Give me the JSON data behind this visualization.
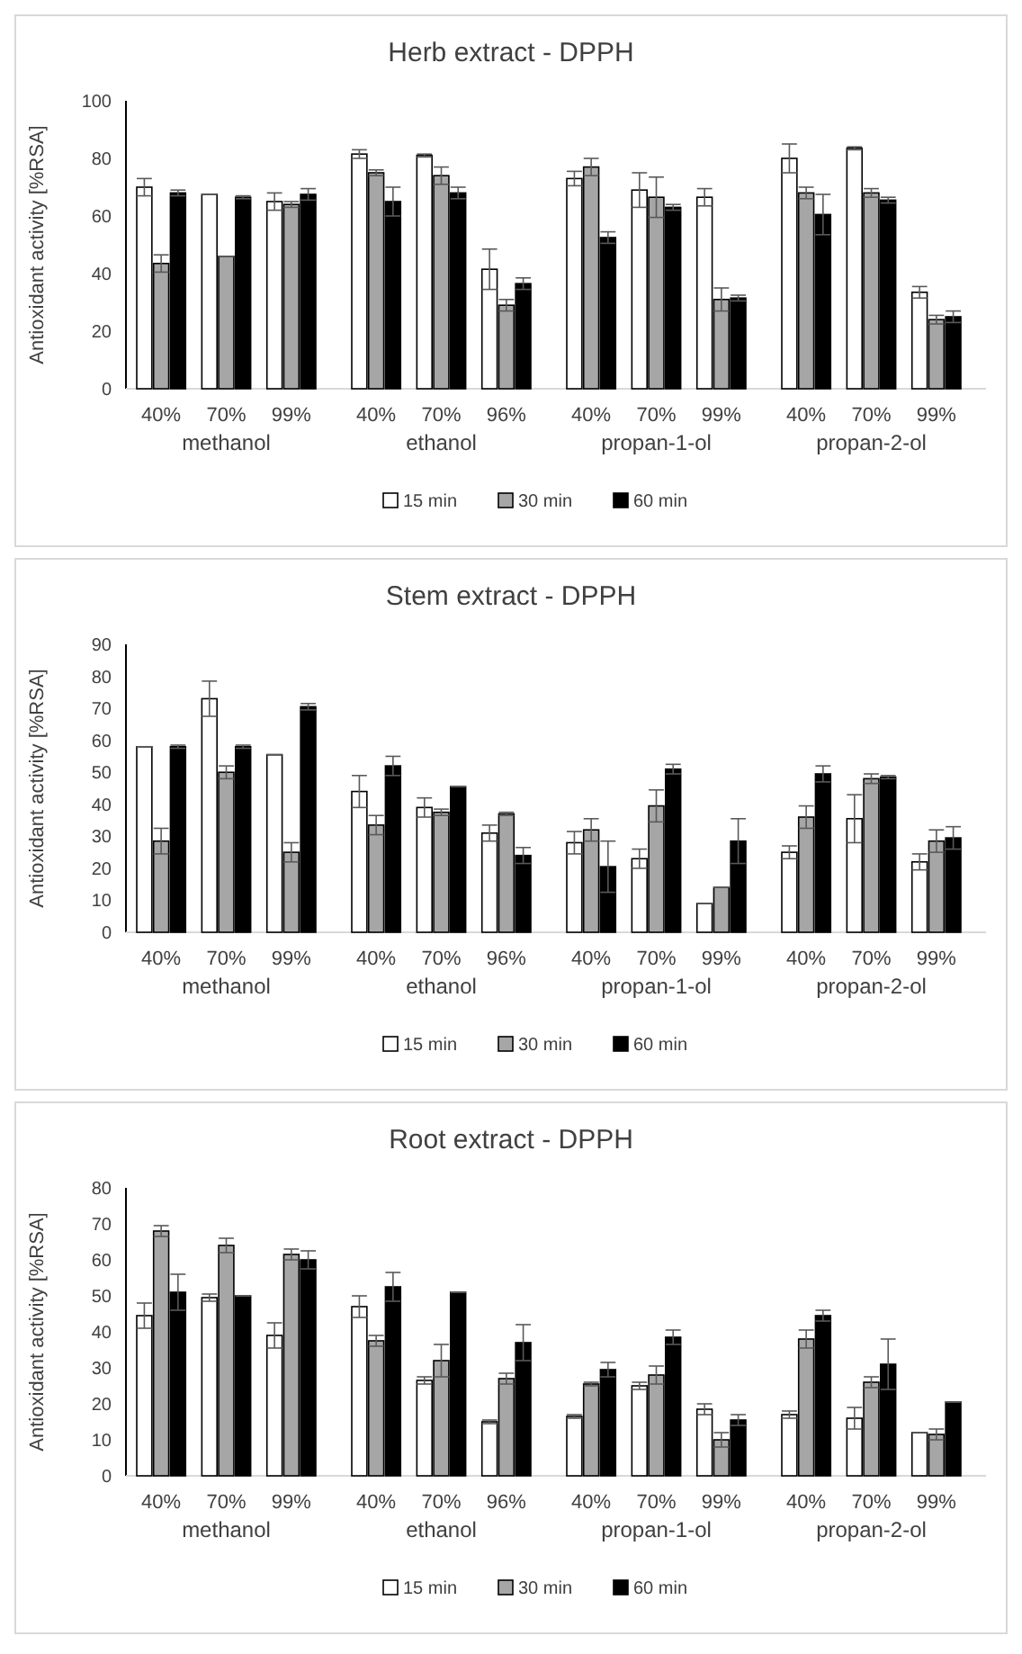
{
  "chart_data": [
    {
      "type": "bar",
      "title": "Herb extract - DPPH",
      "ylabel": "Antioxidant  activity [%RSA]",
      "categories": [
        "40%",
        "70%",
        "99%",
        "40%",
        "70%",
        "96%",
        "40%",
        "70%",
        "99%",
        "40%",
        "70%",
        "99%"
      ],
      "annotations": [
        "methanol",
        "ethanol",
        "propan-1-ol",
        "propan-2-ol"
      ],
      "ylim": [
        0,
        100
      ],
      "yticks": [
        0,
        20,
        40,
        60,
        80,
        100
      ],
      "legend": "bottom",
      "series": [
        {
          "name": "15 min",
          "color": "#ffffff",
          "values": [
            70,
            67.5,
            65,
            81.5,
            81,
            41.5,
            73,
            69,
            66.5,
            80,
            83.5,
            33.5
          ],
          "errors": [
            3,
            0,
            3,
            1.5,
            0.5,
            7,
            2.5,
            6,
            3,
            5,
            0.5,
            2
          ]
        },
        {
          "name": "30 min",
          "color": "#a6a6a6",
          "values": [
            43.5,
            46,
            64,
            75,
            74,
            29,
            77,
            66.5,
            31,
            68,
            68,
            24
          ],
          "errors": [
            3,
            0,
            1,
            1,
            3,
            2,
            3,
            7,
            4,
            2,
            1.5,
            1.5
          ]
        },
        {
          "name": "60 min",
          "color": "#000000",
          "values": [
            68,
            66.5,
            67.5,
            65,
            68,
            36.5,
            52.5,
            63,
            31.5,
            60.5,
            65.5,
            25
          ],
          "errors": [
            1,
            0.5,
            2,
            5,
            2,
            2,
            2,
            1,
            1,
            7,
            1,
            2
          ]
        }
      ]
    },
    {
      "type": "bar",
      "title": "Stem extract - DPPH",
      "ylabel": "Antioxidant  activity [%RSA]",
      "categories": [
        "40%",
        "70%",
        "99%",
        "40%",
        "70%",
        "96%",
        "40%",
        "70%",
        "99%",
        "40%",
        "70%",
        "99%"
      ],
      "annotations": [
        "methanol",
        "ethanol",
        "propan-1-ol",
        "propan-2-ol"
      ],
      "ylim": [
        0,
        90
      ],
      "yticks": [
        0,
        10,
        20,
        30,
        40,
        50,
        60,
        70,
        80,
        90
      ],
      "legend": "bottom",
      "series": [
        {
          "name": "15 min",
          "color": "#ffffff",
          "values": [
            58,
            73,
            55.5,
            44,
            39,
            31,
            28,
            23,
            9,
            25,
            35.5,
            22
          ],
          "errors": [
            0,
            5.5,
            0,
            5,
            3,
            2.5,
            3.5,
            3,
            0,
            2,
            7.5,
            2.5
          ]
        },
        {
          "name": "30 min",
          "color": "#a6a6a6",
          "values": [
            28.5,
            50,
            25,
            33.5,
            37.5,
            37,
            32,
            39.5,
            14,
            36,
            48,
            28.5
          ],
          "errors": [
            4,
            2,
            3,
            3,
            1,
            0.5,
            3.5,
            5,
            0,
            3.5,
            1.5,
            3.5
          ]
        },
        {
          "name": "60 min",
          "color": "#000000",
          "values": [
            58,
            58,
            70.5,
            52,
            45.5,
            24,
            20.5,
            51,
            28.5,
            49.5,
            48.5,
            29.5
          ],
          "errors": [
            0.5,
            0.5,
            1,
            3,
            0,
            2.5,
            8,
            1.5,
            7,
            2.5,
            0.5,
            3.5
          ]
        }
      ]
    },
    {
      "type": "bar",
      "title": "Root extract - DPPH",
      "ylabel": "Antioxidant activity [%RSA]",
      "categories": [
        "40%",
        "70%",
        "99%",
        "40%",
        "70%",
        "96%",
        "40%",
        "70%",
        "99%",
        "40%",
        "70%",
        "99%"
      ],
      "annotations": [
        "methanol",
        "ethanol",
        "propan-1-ol",
        "propan-2-ol"
      ],
      "ylim": [
        0,
        80
      ],
      "yticks": [
        0,
        10,
        20,
        30,
        40,
        50,
        60,
        70,
        80
      ],
      "legend": "bottom",
      "series": [
        {
          "name": "15 min",
          "color": "#ffffff",
          "values": [
            44.5,
            49.5,
            39,
            47,
            26.5,
            15,
            16.5,
            25,
            18.5,
            17,
            16,
            12
          ],
          "errors": [
            3.5,
            1,
            3.5,
            3,
            1,
            0.5,
            0.5,
            1,
            1.5,
            1,
            3,
            0
          ]
        },
        {
          "name": "30 min",
          "color": "#a6a6a6",
          "values": [
            68,
            64,
            61.5,
            37.5,
            32,
            27,
            25.5,
            28,
            10,
            38,
            26,
            11.5
          ],
          "errors": [
            1.5,
            2,
            1.5,
            1.5,
            4.5,
            1.5,
            0.5,
            2.5,
            2,
            2.5,
            1.5,
            1.5
          ]
        },
        {
          "name": "60 min",
          "color": "#000000",
          "values": [
            51,
            50,
            60,
            52.5,
            51,
            37,
            29.5,
            38.5,
            15.5,
            44.5,
            31,
            20.5
          ],
          "errors": [
            5,
            0,
            2.5,
            4,
            0,
            5,
            2,
            2,
            1.5,
            1.5,
            7,
            0
          ]
        }
      ]
    }
  ]
}
